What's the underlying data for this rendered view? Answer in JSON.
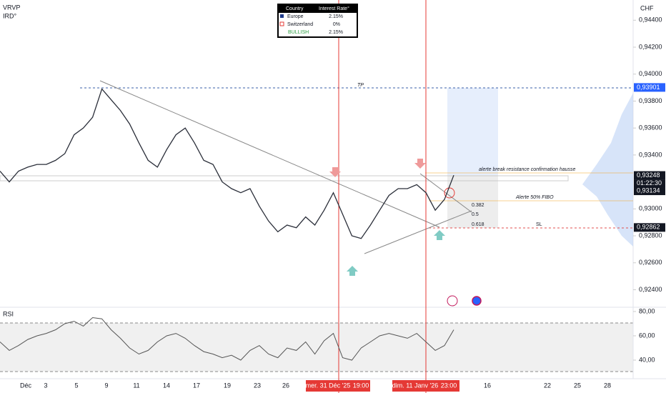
{
  "chart_data": [
    {
      "type": "line",
      "title": "VRVP",
      "subtitle": "IRD°",
      "color": "#2a2e39",
      "values": [
        0.9328,
        0.932,
        0.9328,
        0.9331,
        0.9333,
        0.9333,
        0.9336,
        0.9341,
        0.9355,
        0.936,
        0.9368,
        0.9389,
        0.9381,
        0.9373,
        0.9363,
        0.9349,
        0.9336,
        0.9331,
        0.9344,
        0.9355,
        0.936,
        0.9349,
        0.9336,
        0.9333,
        0.932,
        0.9315,
        0.9312,
        0.9315,
        0.9302,
        0.9291,
        0.9283,
        0.9288,
        0.9286,
        0.9294,
        0.9288,
        0.9299,
        0.9312,
        0.9296,
        0.928,
        0.9278,
        0.9288,
        0.9299,
        0.931,
        0.9315,
        0.9315,
        0.9318,
        0.9312,
        0.9299,
        0.9307,
        0.9325
      ],
      "ylim": [
        0.9227,
        0.9455
      ],
      "y_axis_title": "CHF",
      "yticks": [
        {
          "value": 0.944,
          "label": "0,94400"
        },
        {
          "value": 0.942,
          "label": "0,94200"
        },
        {
          "value": 0.94,
          "label": "0,94000"
        },
        {
          "value": 0.938,
          "label": "0,93800"
        },
        {
          "value": 0.936,
          "label": "0,93600"
        },
        {
          "value": 0.934,
          "label": "0,93400"
        },
        {
          "value": 0.93,
          "label": "0,93000"
        },
        {
          "value": 0.928,
          "label": "0,92800"
        },
        {
          "value": 0.926,
          "label": "0,92600"
        },
        {
          "value": 0.924,
          "label": "0,92400"
        }
      ]
    },
    {
      "type": "line",
      "title": "RSI",
      "color": "#555555",
      "values": [
        55,
        48,
        52,
        57,
        60,
        62,
        65,
        70,
        72,
        68,
        75,
        74,
        65,
        58,
        50,
        45,
        48,
        55,
        60,
        62,
        58,
        52,
        47,
        45,
        42,
        44,
        40,
        48,
        52,
        45,
        42,
        50,
        48,
        55,
        45,
        56,
        62,
        42,
        40,
        50,
        55,
        60,
        62,
        60,
        58,
        62,
        55,
        48,
        52,
        65
      ],
      "ylim": [
        24.7,
        83.5
      ],
      "yticks": [
        {
          "value": 80,
          "label": "80,00"
        },
        {
          "value": 60,
          "label": "60,00"
        },
        {
          "value": 40,
          "label": "40,00"
        }
      ]
    }
  ],
  "price_tags": [
    {
      "value": 0.93901,
      "label": "0,93901",
      "color": "#2962ff"
    },
    {
      "value": 0.93248,
      "label": "0,93248",
      "color": "#131722"
    },
    {
      "value": 0.93134,
      "label": "0,93134",
      "color": "#131722"
    },
    {
      "value": 0.92862,
      "label": "0,92862",
      "color": "#131722"
    }
  ],
  "countdown": "01:22:30",
  "time_axis": [
    "Déc",
    "3",
    "5",
    "9",
    "11",
    "14",
    "17",
    "19",
    "23",
    "26",
    "mer. 31 Déc '25",
    "19:00",
    "dim. 11 Janv '26",
    "23:00",
    "16",
    "22",
    "25",
    "28"
  ],
  "table": {
    "header": [
      "Country",
      "Interest Rate°"
    ],
    "rows": [
      [
        "Europe",
        "2.15%"
      ],
      [
        "Switzerland",
        "0%"
      ],
      [
        "BULLISH",
        "2.15%"
      ]
    ]
  },
  "annotations": {
    "tp": "TP",
    "alert_break": "alerte break resistance confirmation hausse",
    "alert_fibo": "Alerte 50% FIBO",
    "fib": [
      "0.382",
      "0.5",
      "0.618"
    ],
    "sl": "SL"
  }
}
